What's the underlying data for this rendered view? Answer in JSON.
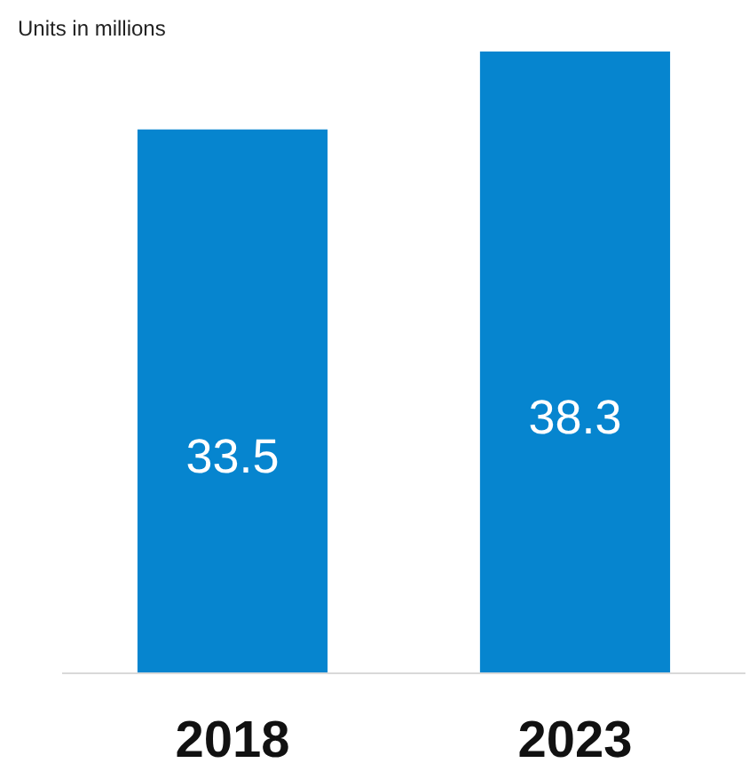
{
  "chart_data": {
    "type": "bar",
    "title": "Units in millions",
    "categories": [
      "2018",
      "2023"
    ],
    "values": [
      33.5,
      38.3
    ],
    "color": "#0685cf",
    "data_labels": true
  }
}
